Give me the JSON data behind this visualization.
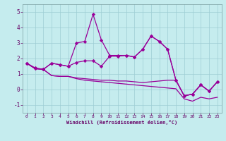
{
  "xlabel": "Windchill (Refroidissement éolien,°C)",
  "xlim": [
    -0.5,
    23.5
  ],
  "ylim": [
    -1.5,
    5.5
  ],
  "yticks": [
    -1,
    0,
    1,
    2,
    3,
    4,
    5
  ],
  "xticks": [
    0,
    1,
    2,
    3,
    4,
    5,
    6,
    7,
    8,
    9,
    10,
    11,
    12,
    13,
    14,
    15,
    16,
    17,
    18,
    19,
    20,
    21,
    22,
    23
  ],
  "background_color": "#c5ecee",
  "grid_color": "#9dcdd4",
  "line_color": "#990099",
  "line1_y": [
    1.7,
    1.4,
    1.3,
    1.7,
    1.6,
    1.5,
    3.0,
    3.1,
    4.85,
    3.2,
    2.2,
    2.2,
    2.2,
    2.1,
    2.6,
    3.45,
    3.1,
    2.6,
    0.6,
    -0.4,
    -0.3,
    0.3,
    -0.1,
    0.5
  ],
  "line2_y": [
    1.7,
    1.35,
    1.3,
    1.7,
    1.6,
    1.5,
    1.75,
    1.85,
    1.85,
    1.5,
    2.15,
    2.15,
    2.2,
    2.1,
    2.6,
    3.45,
    3.1,
    2.6,
    0.6,
    -0.4,
    -0.3,
    0.3,
    -0.1,
    0.5
  ],
  "line3_y": [
    1.7,
    1.35,
    1.3,
    0.9,
    0.85,
    0.85,
    0.75,
    0.7,
    0.65,
    0.6,
    0.6,
    0.55,
    0.55,
    0.5,
    0.45,
    0.5,
    0.55,
    0.6,
    0.6,
    -0.4,
    -0.3,
    0.3,
    -0.1,
    0.5
  ],
  "line4_y": [
    1.7,
    1.35,
    1.3,
    0.9,
    0.85,
    0.85,
    0.7,
    0.6,
    0.55,
    0.5,
    0.45,
    0.4,
    0.35,
    0.3,
    0.25,
    0.2,
    0.15,
    0.1,
    0.05,
    -0.6,
    -0.75,
    -0.5,
    -0.6,
    -0.5
  ]
}
